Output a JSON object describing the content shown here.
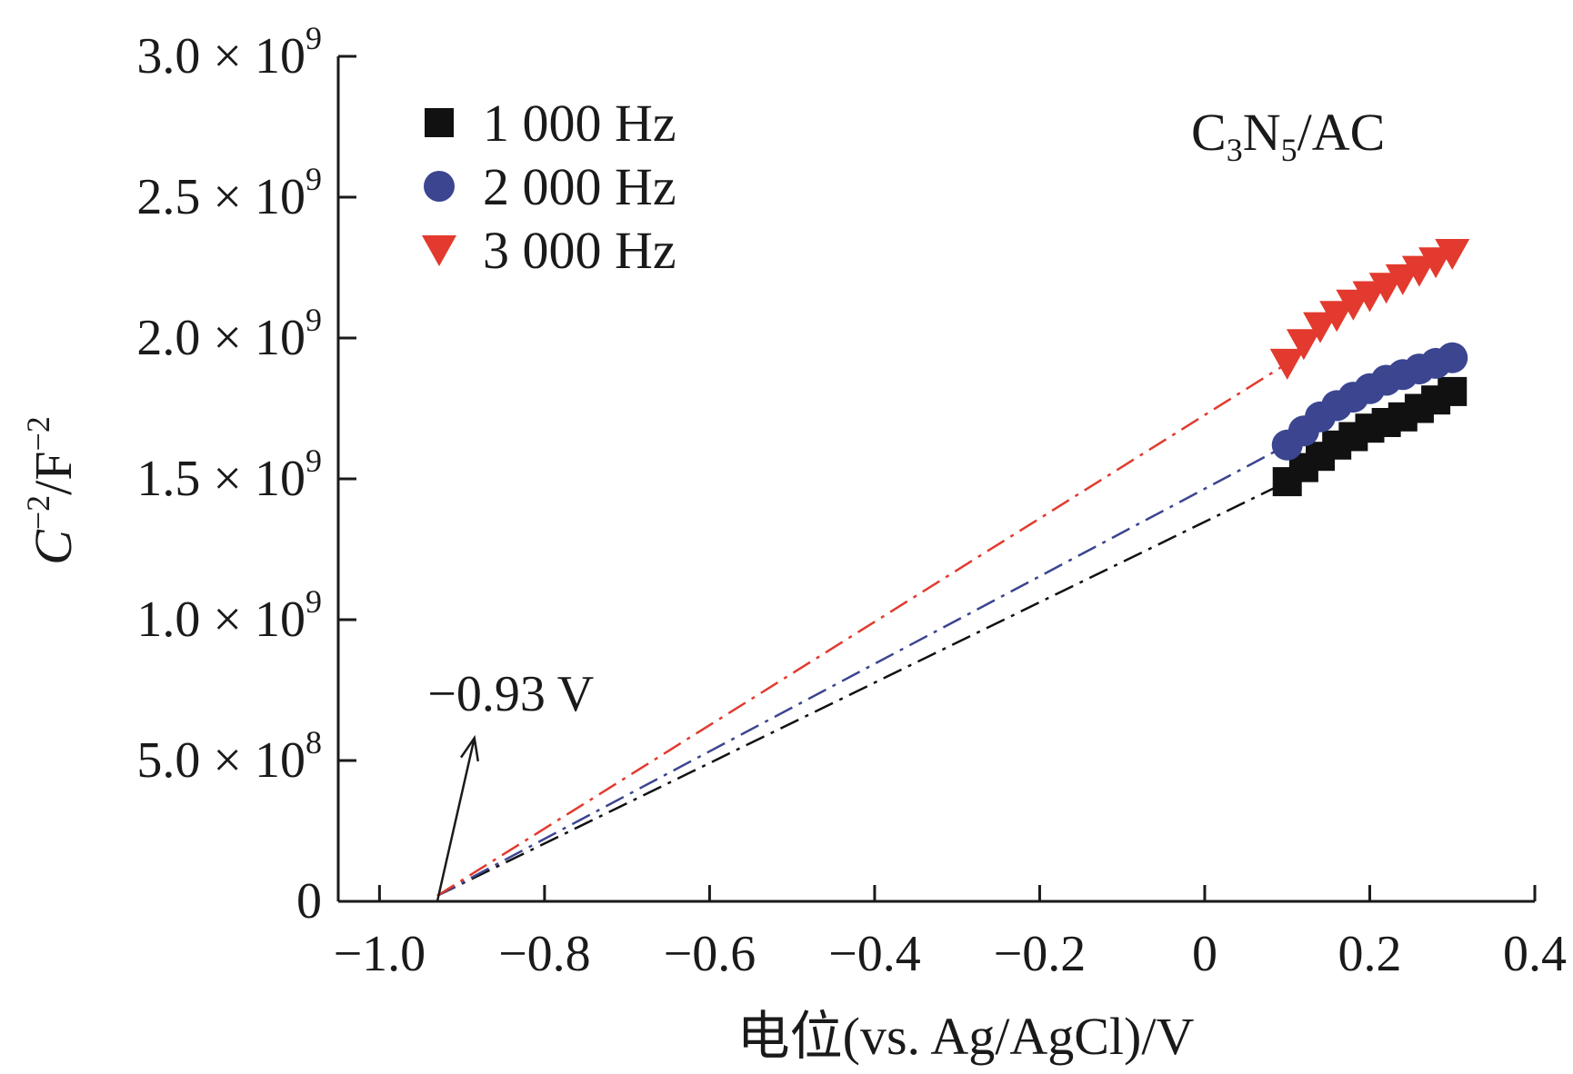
{
  "chart_data": {
    "type": "scatter",
    "title": "",
    "sample_label": {
      "c": "C",
      "sub1": "3",
      "n": "N",
      "sub2": "5",
      "rest": "/AC"
    },
    "xlabel": "电位(vs. Ag/AgCl)/V",
    "ylabel": {
      "c": "C",
      "sup1": "−2",
      "mid": "/F",
      "sup2": "−2"
    },
    "xlim": [
      -1.05,
      0.4
    ],
    "ylim": [
      0,
      3000000000.0
    ],
    "x_ticks": [
      {
        "value": -1.0,
        "label": "−1.0"
      },
      {
        "value": -0.8,
        "label": "−0.8"
      },
      {
        "value": -0.6,
        "label": "−0.6"
      },
      {
        "value": -0.4,
        "label": "−0.4"
      },
      {
        "value": -0.2,
        "label": "−0.2"
      },
      {
        "value": 0.0,
        "label": "0"
      },
      {
        "value": 0.2,
        "label": "0.2"
      },
      {
        "value": 0.4,
        "label": "0.4"
      }
    ],
    "y_ticks": [
      {
        "value": 0,
        "mant": "0",
        "exp": ""
      },
      {
        "value": 500000000.0,
        "mant": "5.0 × 10",
        "exp": "8"
      },
      {
        "value": 1000000000.0,
        "mant": "1.0 × 10",
        "exp": "9"
      },
      {
        "value": 1500000000.0,
        "mant": "1.5 × 10",
        "exp": "9"
      },
      {
        "value": 2000000000.0,
        "mant": "2.0 × 10",
        "exp": "9"
      },
      {
        "value": 2500000000.0,
        "mant": "2.5 × 10",
        "exp": "9"
      },
      {
        "value": 3000000000.0,
        "mant": "3.0 × 10",
        "exp": "9"
      }
    ],
    "legend_position": "top-left",
    "grid": false,
    "series": [
      {
        "name": "1 000 Hz",
        "marker": "square",
        "color": "#111111",
        "line_color": "#111111",
        "x": [
          0.1,
          0.12,
          0.14,
          0.16,
          0.18,
          0.2,
          0.22,
          0.24,
          0.26,
          0.28,
          0.3
        ],
        "y": [
          1490000000.0,
          1540000000.0,
          1580000000.0,
          1620000000.0,
          1650000000.0,
          1680000000.0,
          1700000000.0,
          1720000000.0,
          1750000000.0,
          1780000000.0,
          1810000000.0
        ],
        "fit": {
          "x": [
            -0.93,
            0.1
          ],
          "y": [
            20000000.0,
            1490000000.0
          ]
        }
      },
      {
        "name": "2 000 Hz",
        "marker": "circle",
        "color": "#3b4590",
        "line_color": "#3b4590",
        "x": [
          0.1,
          0.12,
          0.14,
          0.16,
          0.18,
          0.2,
          0.22,
          0.24,
          0.26,
          0.28,
          0.3
        ],
        "y": [
          1620000000.0,
          1670000000.0,
          1720000000.0,
          1760000000.0,
          1790000000.0,
          1820000000.0,
          1850000000.0,
          1870000000.0,
          1890000000.0,
          1910000000.0,
          1930000000.0
        ],
        "fit": {
          "x": [
            -0.93,
            0.1
          ],
          "y": [
            20000000.0,
            1620000000.0
          ]
        }
      },
      {
        "name": "3 000 Hz",
        "marker": "triangle-down",
        "color": "#e23a2e",
        "line_color": "#e23a2e",
        "x": [
          0.1,
          0.12,
          0.14,
          0.16,
          0.18,
          0.2,
          0.22,
          0.24,
          0.26,
          0.28,
          0.3
        ],
        "y": [
          1910000000.0,
          1980000000.0,
          2040000000.0,
          2080000000.0,
          2120000000.0,
          2150000000.0,
          2180000000.0,
          2210000000.0,
          2240000000.0,
          2270000000.0,
          2300000000.0
        ],
        "fit": {
          "x": [
            -0.93,
            0.1
          ],
          "y": [
            20000000.0,
            1910000000.0
          ]
        }
      }
    ],
    "annotation": {
      "text": "−0.93 V",
      "x": -0.93,
      "y": 0,
      "arrow_from": {
        "x": -0.93,
        "y": 0
      },
      "arrow_to": {
        "x": -0.885,
        "y": 580000000.0
      }
    }
  }
}
